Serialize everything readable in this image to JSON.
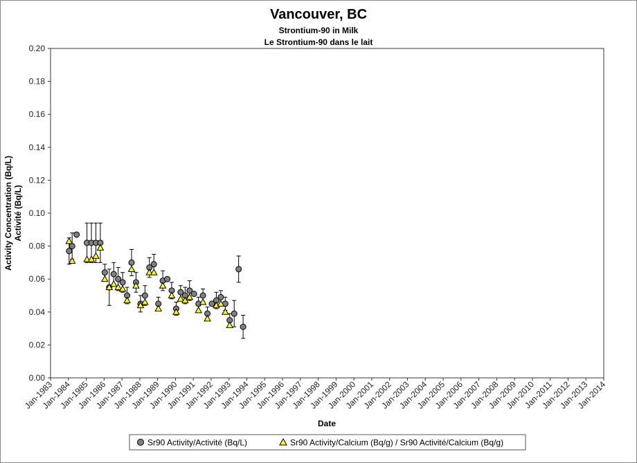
{
  "chart_data": {
    "type": "scatter",
    "title": "Vancouver, BC",
    "subtitle_en": "Strontium-90 in Milk",
    "subtitle_fr": "Le Strontium-90 dans le lait",
    "xlabel": "Date",
    "ylabel_en": "Activity Concentration (Bq/L)",
    "ylabel_fr": "Activité (Bq/L)",
    "xlim": [
      1983.0,
      2014.0
    ],
    "ylim": [
      0.0,
      0.2
    ],
    "y_ticks": [
      "0.00",
      "0.02",
      "0.04",
      "0.06",
      "0.08",
      "0.10",
      "0.12",
      "0.14",
      "0.16",
      "0.18",
      "0.20"
    ],
    "x_ticks": [
      "Jan-1983",
      "Jan-1984",
      "Jan-1985",
      "Jan-1986",
      "Jan-1987",
      "Jan-1988",
      "Jan-1989",
      "Jan-1990",
      "Jan-1991",
      "Jan-1992",
      "Jan-1993",
      "Jan-1994",
      "Jan-1995",
      "Jan-1996",
      "Jan-1997",
      "Jan-1998",
      "Jan-1999",
      "Jan-2000",
      "Jan-2001",
      "Jan-2002",
      "Jan-2003",
      "Jan-2004",
      "Jan-2005",
      "Jan-2006",
      "Jan-2007",
      "Jan-2008",
      "Jan-2009",
      "Jan-2010",
      "Jan-2011",
      "Jan-2012",
      "Jan-2013",
      "Jan-2014"
    ],
    "grid": false,
    "legend_position": "bottom",
    "series": [
      {
        "name": "Sr90 Activity/Activité (Bq/L)",
        "marker": "circle",
        "color": "#808080",
        "points": [
          {
            "x": 1984.04,
            "y": 0.077,
            "err": 0.008
          },
          {
            "x": 1984.21,
            "y": 0.08,
            "err": 0.008
          },
          {
            "x": 1984.46,
            "y": 0.087,
            "err": 0
          },
          {
            "x": 1985.04,
            "y": 0.082,
            "err": 0.012
          },
          {
            "x": 1985.29,
            "y": 0.082,
            "err": 0.012
          },
          {
            "x": 1985.54,
            "y": 0.082,
            "err": 0.012
          },
          {
            "x": 1985.79,
            "y": 0.082,
            "err": 0.012
          },
          {
            "x": 1986.04,
            "y": 0.064,
            "err": 0.005
          },
          {
            "x": 1986.29,
            "y": 0.055,
            "err": 0.011
          },
          {
            "x": 1986.54,
            "y": 0.063,
            "err": 0.007
          },
          {
            "x": 1986.79,
            "y": 0.06,
            "err": 0.007
          },
          {
            "x": 1987.04,
            "y": 0.058,
            "err": 0.006
          },
          {
            "x": 1987.29,
            "y": 0.05,
            "err": 0.005
          },
          {
            "x": 1987.54,
            "y": 0.07,
            "err": 0.008
          },
          {
            "x": 1987.79,
            "y": 0.058,
            "err": 0.006
          },
          {
            "x": 1988.04,
            "y": 0.045,
            "err": 0.005
          },
          {
            "x": 1988.29,
            "y": 0.05,
            "err": 0.006
          },
          {
            "x": 1988.54,
            "y": 0.067,
            "err": 0.006
          },
          {
            "x": 1988.79,
            "y": 0.069,
            "err": 0.006
          },
          {
            "x": 1989.04,
            "y": 0.045,
            "err": 0.004
          },
          {
            "x": 1989.29,
            "y": 0.059,
            "err": 0.006
          },
          {
            "x": 1989.54,
            "y": 0.06,
            "err": 0
          },
          {
            "x": 1989.79,
            "y": 0.053,
            "err": 0.005
          },
          {
            "x": 1990.04,
            "y": 0.042,
            "err": 0.004
          },
          {
            "x": 1990.29,
            "y": 0.052,
            "err": 0.004
          },
          {
            "x": 1990.54,
            "y": 0.05,
            "err": 0.005
          },
          {
            "x": 1990.79,
            "y": 0.053,
            "err": 0.006
          },
          {
            "x": 1991.04,
            "y": 0.051,
            "err": 0
          },
          {
            "x": 1991.29,
            "y": 0.045,
            "err": 0.004
          },
          {
            "x": 1991.54,
            "y": 0.05,
            "err": 0.004
          },
          {
            "x": 1991.79,
            "y": 0.039,
            "err": 0.004
          },
          {
            "x": 1992.04,
            "y": 0.045,
            "err": 0
          },
          {
            "x": 1992.29,
            "y": 0.047,
            "err": 0.005
          },
          {
            "x": 1992.54,
            "y": 0.049,
            "err": 0.004
          },
          {
            "x": 1992.79,
            "y": 0.045,
            "err": 0.004
          },
          {
            "x": 1993.04,
            "y": 0.035,
            "err": 0.004
          },
          {
            "x": 1993.29,
            "y": 0.039,
            "err": 0.008
          },
          {
            "x": 1993.54,
            "y": 0.066,
            "err": 0.008
          },
          {
            "x": 1993.79,
            "y": 0.031,
            "err": 0.007
          }
        ]
      },
      {
        "name": "Sr90 Activity/Calcium (Bq/g) / Sr90 Activité/Calcium (Bq/g)",
        "marker": "triangle",
        "color": "#ffff00",
        "points": [
          {
            "x": 1984.04,
            "y": 0.083
          },
          {
            "x": 1984.21,
            "y": 0.071
          },
          {
            "x": 1985.04,
            "y": 0.072
          },
          {
            "x": 1985.29,
            "y": 0.072
          },
          {
            "x": 1985.54,
            "y": 0.074
          },
          {
            "x": 1985.79,
            "y": 0.079
          },
          {
            "x": 1986.04,
            "y": 0.06
          },
          {
            "x": 1986.29,
            "y": 0.055
          },
          {
            "x": 1986.54,
            "y": 0.057
          },
          {
            "x": 1986.79,
            "y": 0.055
          },
          {
            "x": 1987.04,
            "y": 0.054
          },
          {
            "x": 1987.29,
            "y": 0.047
          },
          {
            "x": 1987.54,
            "y": 0.066
          },
          {
            "x": 1987.79,
            "y": 0.056
          },
          {
            "x": 1988.04,
            "y": 0.044
          },
          {
            "x": 1988.29,
            "y": 0.046
          },
          {
            "x": 1988.54,
            "y": 0.064
          },
          {
            "x": 1988.79,
            "y": 0.064
          },
          {
            "x": 1989.04,
            "y": 0.042
          },
          {
            "x": 1989.29,
            "y": 0.056
          },
          {
            "x": 1989.79,
            "y": 0.05
          },
          {
            "x": 1990.04,
            "y": 0.04
          },
          {
            "x": 1990.29,
            "y": 0.048
          },
          {
            "x": 1990.54,
            "y": 0.047
          },
          {
            "x": 1990.79,
            "y": 0.049
          },
          {
            "x": 1991.29,
            "y": 0.041
          },
          {
            "x": 1991.54,
            "y": 0.046
          },
          {
            "x": 1991.79,
            "y": 0.036
          },
          {
            "x": 1992.29,
            "y": 0.044
          },
          {
            "x": 1992.54,
            "y": 0.045
          },
          {
            "x": 1992.79,
            "y": 0.04
          },
          {
            "x": 1993.04,
            "y": 0.032
          }
        ]
      }
    ]
  }
}
